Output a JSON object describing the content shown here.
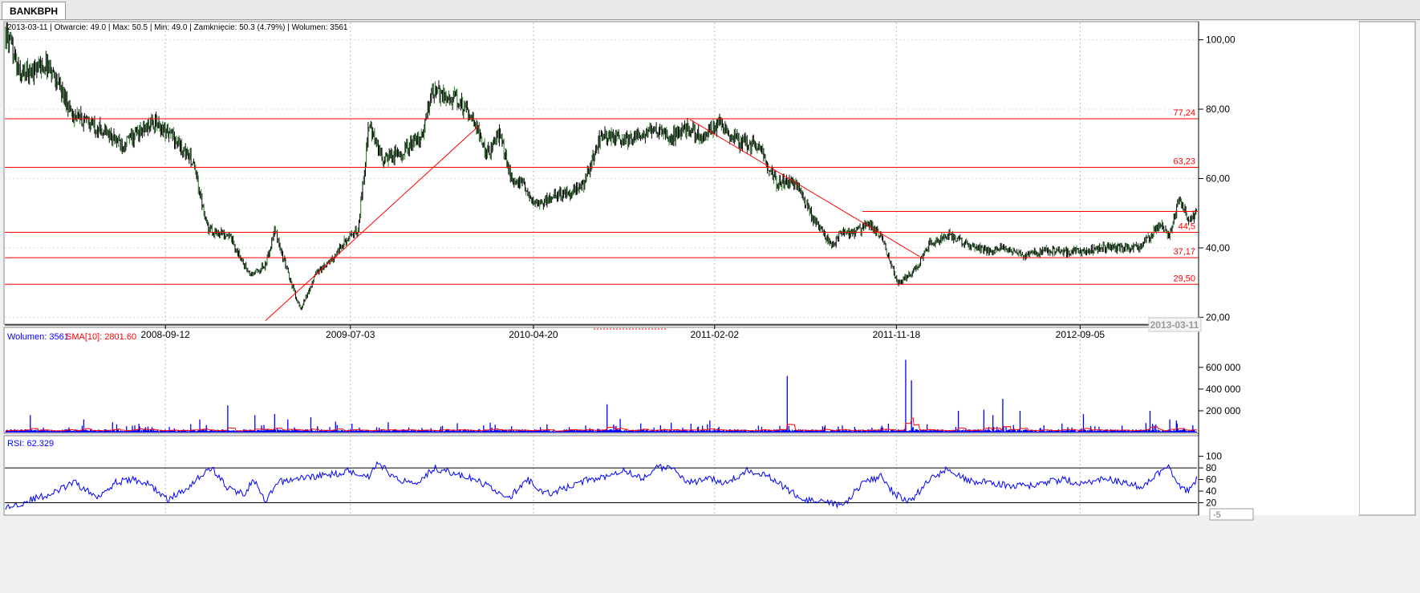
{
  "tab": {
    "label": "BANKBPH"
  },
  "colors": {
    "price": "#000000",
    "price_green": "#1f7a1f",
    "level": "#ff0000",
    "volume": "#0000ff",
    "sma": "#ff0000",
    "rsi": "#0000ff",
    "grid": "#b9b9b9"
  },
  "price_panel": {
    "info": "2013-03-11 | Otwarcie: 49.0 | Max: 50.5 | Min: 49.0 | Zamknięcie: 50.3 (4.79%)  | Wolumen: 3561"
  },
  "volume_panel": {
    "label_volume": "Wolumen: 3561",
    "label_sma": "SMA[10]: 2801.60"
  },
  "rsi_panel": {
    "label": "RSI: 62.329",
    "scroll_value": "-5"
  },
  "chart_data": [
    {
      "type": "line",
      "ylim": [
        18,
        105
      ],
      "y_ticks": [
        "100,00",
        "80,00",
        "60,00",
        "40,00",
        "20,00"
      ],
      "x_ticks": [
        "2008-09-12",
        "2009-07-03",
        "2010-04-20",
        "2011-02-02",
        "2011-11-18",
        "2012-09-05"
      ],
      "x_end_label": "2013-03-11",
      "series": [
        {
          "x": [
            "2008-01-02",
            "2008-01-25",
            "2008-03-10",
            "2008-04-20",
            "2008-05-25",
            "2008-07-05",
            "2008-08-25",
            "2008-09-25",
            "2008-10-25",
            "2008-11-20",
            "2008-12-20",
            "2009-01-25",
            "2009-02-18",
            "2009-03-05",
            "2009-03-25",
            "2009-04-15",
            "2009-05-10",
            "2009-06-01",
            "2009-06-25",
            "2009-07-15",
            "2009-08-01",
            "2009-08-25",
            "2009-09-25",
            "2009-10-25",
            "2009-11-10",
            "2009-12-15",
            "2010-01-10",
            "2010-02-05",
            "2010-02-25",
            "2010-03-15",
            "2010-04-05",
            "2010-04-25",
            "2010-05-20",
            "2010-06-15",
            "2010-07-10",
            "2010-08-05",
            "2010-09-05",
            "2010-10-05",
            "2010-11-05",
            "2010-11-25",
            "2010-12-20",
            "2011-01-15",
            "2011-02-10",
            "2011-03-10",
            "2011-04-15",
            "2011-05-10",
            "2011-06-10",
            "2011-07-10",
            "2011-08-10",
            "2011-08-20",
            "2011-09-10",
            "2011-10-05",
            "2011-10-25",
            "2011-11-20",
            "2011-12-15",
            "2012-01-10",
            "2012-02-10",
            "2012-03-10",
            "2012-04-10",
            "2012-05-10",
            "2012-06-10",
            "2012-07-10",
            "2012-08-10",
            "2012-09-10",
            "2012-10-10",
            "2012-11-10",
            "2012-12-10",
            "2013-01-10",
            "2013-01-25",
            "2013-02-10",
            "2013-02-25",
            "2013-03-11"
          ],
          "values": [
            102,
            90,
            93,
            78,
            75,
            70,
            76,
            72,
            65,
            45,
            44,
            32,
            35,
            45,
            33,
            22,
            33,
            36,
            42,
            45,
            75,
            65,
            68,
            72,
            85,
            83,
            79,
            67,
            73,
            60,
            58,
            52,
            55,
            56,
            58,
            73,
            71,
            72,
            74,
            72,
            75,
            72,
            76,
            71,
            69,
            59,
            59,
            48,
            40,
            45,
            44,
            47,
            43,
            30,
            33,
            41,
            44,
            41,
            39,
            40,
            38,
            39,
            39,
            39,
            40,
            40,
            40,
            47,
            44,
            54,
            48,
            50.3
          ]
        }
      ],
      "levels": [
        77.24,
        63.23,
        44.5,
        37.17,
        29.5
      ],
      "level_labels": [
        "77,24",
        "63,23",
        "44,5",
        "37,17",
        "29,50"
      ],
      "resistance_line": {
        "from": "2011-09-25",
        "to": "2013-03-11",
        "value": 50.5
      },
      "trendlines": [
        {
          "from": [
            "2009-02-18",
            19
          ],
          "to": [
            "2010-01-25",
            75.5
          ]
        },
        {
          "from": [
            "2010-12-25",
            77
          ],
          "to": [
            "2011-12-25",
            37.5
          ]
        }
      ]
    },
    {
      "type": "bar",
      "ylim": [
        0,
        680000
      ],
      "y_ticks": [
        "600 000",
        "400 000",
        "200 000"
      ],
      "series": [
        {
          "name": "Wolumen",
          "spikes": [
            [
              "2008-02-10",
              160000
            ],
            [
              "2008-05-05",
              120000
            ],
            [
              "2008-06-20",
              95000
            ],
            [
              "2008-08-01",
              80000
            ],
            [
              "2008-11-05",
              120000
            ],
            [
              "2008-12-20",
              250000
            ],
            [
              "2009-02-01",
              160000
            ],
            [
              "2009-03-05",
              170000
            ],
            [
              "2009-03-25",
              120000
            ],
            [
              "2009-05-01",
              140000
            ],
            [
              "2009-06-10",
              100000
            ],
            [
              "2009-09-01",
              95000
            ],
            [
              "2009-12-20",
              85000
            ],
            [
              "2010-02-10",
              90000
            ],
            [
              "2010-08-15",
              260000
            ],
            [
              "2010-09-05",
              125000
            ],
            [
              "2010-11-25",
              90000
            ],
            [
              "2011-01-25",
              110000
            ],
            [
              "2011-05-28",
              520000
            ],
            [
              "2011-12-03",
              670000
            ],
            [
              "2011-12-12",
              480000
            ],
            [
              "2012-02-25",
              200000
            ],
            [
              "2012-04-05",
              210000
            ],
            [
              "2012-04-20",
              160000
            ],
            [
              "2012-05-05",
              310000
            ],
            [
              "2012-06-01",
              200000
            ],
            [
              "2012-09-10",
              170000
            ],
            [
              "2012-12-25",
              200000
            ],
            [
              "2013-01-25",
              120000
            ],
            [
              "2013-02-05",
              110000
            ]
          ]
        },
        {
          "name": "SMA[10]"
        }
      ]
    },
    {
      "type": "line",
      "ylim": [
        0,
        105
      ],
      "y_ticks": [
        "100",
        "80",
        "60",
        "40",
        "20"
      ],
      "levels": [
        80,
        20
      ],
      "series": [
        {
          "name": "RSI",
          "x": [
            "2008-01-02",
            "2008-02-10",
            "2008-03-15",
            "2008-04-20",
            "2008-05-25",
            "2008-06-25",
            "2008-07-25",
            "2008-08-20",
            "2008-09-15",
            "2008-10-10",
            "2008-11-05",
            "2008-11-25",
            "2008-12-20",
            "2009-01-15",
            "2009-01-30",
            "2009-02-18",
            "2009-03-10",
            "2009-04-01",
            "2009-05-01",
            "2009-06-01",
            "2009-07-01",
            "2009-08-01",
            "2009-08-15",
            "2009-09-15",
            "2009-10-15",
            "2009-11-15",
            "2009-12-15",
            "2010-01-15",
            "2010-02-15",
            "2010-03-10",
            "2010-04-10",
            "2010-05-10",
            "2010-06-10",
            "2010-07-10",
            "2010-08-10",
            "2010-09-10",
            "2010-10-10",
            "2010-11-01",
            "2010-11-25",
            "2010-12-25",
            "2011-01-25",
            "2011-02-25",
            "2011-03-25",
            "2011-04-25",
            "2011-05-25",
            "2011-06-25",
            "2011-07-25",
            "2011-08-25",
            "2011-09-25",
            "2011-10-25",
            "2011-11-15",
            "2011-12-10",
            "2012-01-10",
            "2012-02-10",
            "2012-03-10",
            "2012-04-10",
            "2012-05-10",
            "2012-06-10",
            "2012-07-10",
            "2012-08-10",
            "2012-09-10",
            "2012-10-10",
            "2012-11-10",
            "2012-12-10",
            "2013-01-10",
            "2013-01-25",
            "2013-02-10",
            "2013-02-25",
            "2013-03-11"
          ],
          "values": [
            10,
            25,
            35,
            55,
            30,
            55,
            60,
            50,
            25,
            40,
            65,
            80,
            45,
            35,
            60,
            20,
            55,
            60,
            65,
            68,
            75,
            65,
            90,
            60,
            55,
            80,
            70,
            60,
            45,
            25,
            60,
            35,
            45,
            58,
            65,
            78,
            60,
            82,
            78,
            55,
            60,
            55,
            75,
            70,
            45,
            25,
            20,
            15,
            55,
            65,
            35,
            22,
            60,
            80,
            58,
            55,
            50,
            48,
            55,
            60,
            52,
            62,
            55,
            48,
            72,
            80,
            48,
            40,
            62.3
          ]
        }
      ]
    }
  ]
}
